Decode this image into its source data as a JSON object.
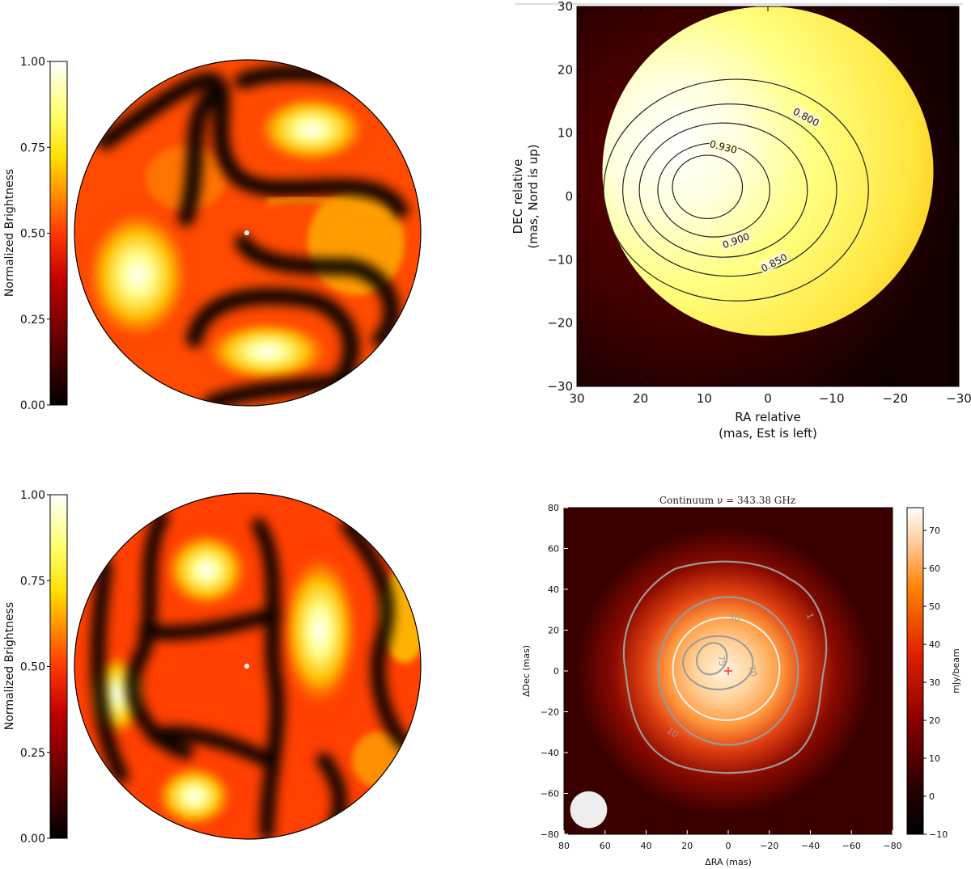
{
  "colors": {
    "hot_colormap": [
      "#000000",
      "#b80000",
      "#ff3000",
      "#ffc000",
      "#ffff60",
      "#ffffff"
    ],
    "contour_dark": "#222222",
    "contour_gray": "#9a9a9a",
    "contour_white": "#f2f2f2",
    "center_marker": "#ff3030",
    "beam": "#eeeeee"
  },
  "chart_data": [
    {
      "id": "spot_map_1",
      "type": "heatmap",
      "colorbar": {
        "label": "Normalized Brightness",
        "ticks": [
          "0.00",
          "0.25",
          "0.50",
          "0.75",
          "1.00"
        ],
        "range": [
          0,
          1
        ]
      }
    },
    {
      "id": "stellar_disk_model",
      "type": "heatmap",
      "xlabel": "RA relative",
      "xlabel2": "(mas, Est is left)",
      "ylabel": "DEC relative",
      "ylabel2": "(mas, Nord is up)",
      "xlim": [
        30,
        -30
      ],
      "ylim": [
        -30,
        30
      ],
      "xticks": [
        "30",
        "20",
        "10",
        "0",
        "−10",
        "−20",
        "−30"
      ],
      "yticks": [
        "−30",
        "−20",
        "−10",
        "0",
        "10",
        "20",
        "30"
      ],
      "disk": {
        "center": [
          0,
          4
        ],
        "radius": 26
      },
      "contours": [
        {
          "level": "0.800"
        },
        {
          "level": "0.850"
        },
        {
          "level": "0.900"
        },
        {
          "level": "0.930"
        }
      ]
    },
    {
      "id": "spot_map_2",
      "type": "heatmap",
      "colorbar": {
        "label": "Normalized Brightness",
        "ticks": [
          "0.00",
          "0.25",
          "0.50",
          "0.75",
          "1.00"
        ],
        "range": [
          0,
          1
        ]
      }
    },
    {
      "id": "continuum_image",
      "type": "heatmap",
      "title": "Continuum ν = 343.38 GHz",
      "xlabel": "ΔRA (mas)",
      "ylabel": "ΔDec (mas)",
      "xlim": [
        80,
        -80
      ],
      "ylim": [
        -80,
        80
      ],
      "xticks": [
        "80",
        "60",
        "40",
        "20",
        "0",
        "−20",
        "−40",
        "−60",
        "−80"
      ],
      "yticks": [
        "−80",
        "−60",
        "−40",
        "−20",
        "0",
        "20",
        "40",
        "60",
        "80"
      ],
      "colorbar": {
        "label": "mJy/beam",
        "ticks": [
          "−10",
          "0",
          "10",
          "20",
          "30",
          "40",
          "50",
          "60",
          "70"
        ],
        "range": [
          -10,
          76
        ]
      },
      "contours": [
        {
          "level": "1"
        },
        {
          "level": "10"
        },
        {
          "level": "50"
        },
        {
          "level": "70"
        },
        {
          "level": "75"
        }
      ]
    }
  ]
}
